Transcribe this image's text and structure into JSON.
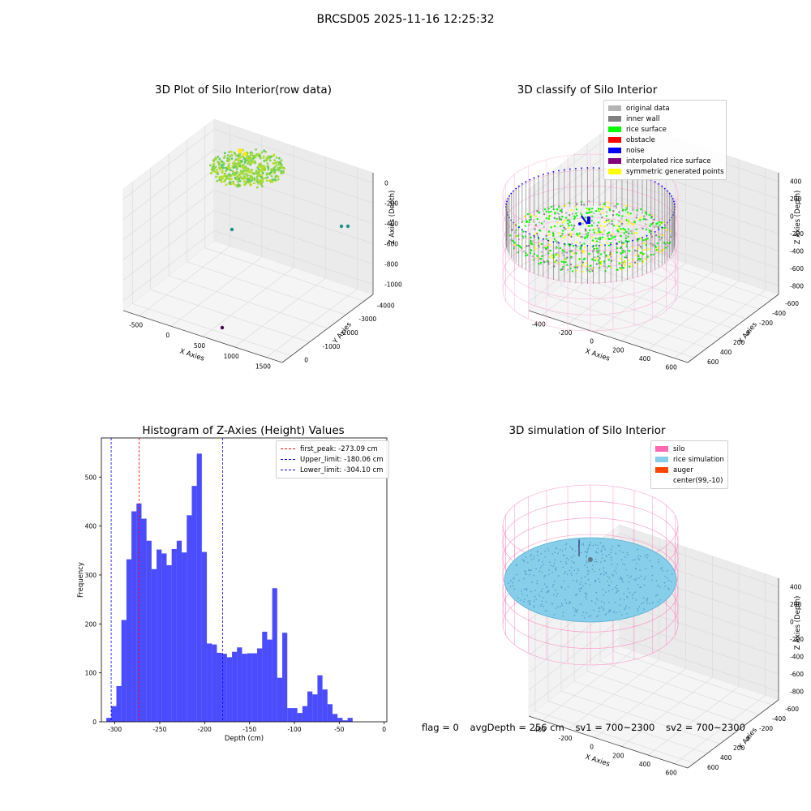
{
  "suptitle": "BRCSD05 2025-11-16 12:25:32",
  "chart_data": [
    {
      "type": "scatter",
      "title": "3D Plot of Silo Interior(row data)",
      "xlabel": "X Axies",
      "ylabel": "Y Axies",
      "zlabel": "Z Axies (Depth)",
      "x_ticks": [
        "-500",
        "0",
        "500",
        "1000",
        "1500"
      ],
      "y_ticks": [
        "0",
        "-1000",
        "-2000",
        "-3000",
        "-4000"
      ],
      "z_ticks": [
        "0",
        "-200",
        "-400",
        "-600",
        "-800",
        "-1000"
      ],
      "xlim": [
        -650,
        1850
      ],
      "ylim": [
        -4300,
        400
      ],
      "zlim": [
        -1080,
        20
      ],
      "outliers": [
        {
          "x": -50,
          "y": -800,
          "z": -620
        },
        {
          "x": 1400,
          "y": -400,
          "z": -620
        },
        {
          "x": 1500,
          "y": -400,
          "z": -620
        },
        {
          "x": 600,
          "y": -4200,
          "z": -1000
        }
      ],
      "colormap": [
        "#440154",
        "#21918c",
        "#5ec962",
        "#fde725"
      ]
    },
    {
      "type": "scatter",
      "title": "3D classify of Silo Interior",
      "xlabel": "X Axies",
      "ylabel": "Y Axies",
      "zlabel": "Z Axies (Depth)",
      "x_ticks": [
        "-400",
        "-200",
        "0",
        "200",
        "400",
        "600"
      ],
      "y_ticks": [
        "600",
        "400",
        "200",
        "0",
        "-200",
        "-400",
        "-600"
      ],
      "z_ticks": [
        "400",
        "200",
        "0",
        "-200",
        "-400",
        "-600",
        "-800"
      ],
      "legend": [
        {
          "label": "original data",
          "color": "#b4b4b4"
        },
        {
          "label": "inner wall",
          "color": "#808080"
        },
        {
          "label": "rice surface",
          "color": "#00ff00"
        },
        {
          "label": "obstacle",
          "color": "#ff0000"
        },
        {
          "label": "noise",
          "color": "#0000ff"
        },
        {
          "label": "interpolated rice surface",
          "color": "#800080"
        },
        {
          "label": "symmetric generated points",
          "color": "#ffff00"
        }
      ],
      "silo_color": "#ff69b4"
    },
    {
      "type": "bar",
      "title": "Histogram of Z-Axies (Height) Values",
      "xlabel": "Depth (cm)",
      "ylabel": "Frequency",
      "xlim": [
        -315,
        3
      ],
      "ylim": [
        0,
        580
      ],
      "x_ticks": [
        -300,
        -250,
        -200,
        -150,
        -100,
        -50,
        0
      ],
      "y_ticks": [
        0,
        100,
        200,
        300,
        400,
        500
      ],
      "bin_start": -309.5,
      "bin_width": 5.6,
      "values": [
        8,
        32,
        73,
        208,
        332,
        430,
        446,
        415,
        370,
        312,
        352,
        344,
        320,
        353,
        370,
        346,
        422,
        482,
        548,
        347,
        160,
        158,
        141,
        139,
        132,
        143,
        152,
        139,
        140,
        140,
        150,
        184,
        168,
        273,
        90,
        182,
        28,
        28,
        18,
        32,
        62,
        56,
        95,
        66,
        36,
        16,
        8,
        3,
        8
      ],
      "bar_color": "#0000ff",
      "lines": [
        {
          "label": "first_peak: -273.09 cm",
          "x": -273.09,
          "color": "#ff0000"
        },
        {
          "label": "Upper_limit: -180.06 cm",
          "x": -180.06,
          "color": "#0000ff"
        },
        {
          "label": "Lower_limit: -304.10 cm",
          "x": -304.1,
          "color": "#0000ff"
        }
      ]
    },
    {
      "type": "scatter",
      "title": "3D simulation of Silo Interior",
      "xlabel": "X Axies",
      "ylabel": "Y Axies",
      "zlabel": "Z Axies (Depth)",
      "x_ticks": [
        "-400",
        "-200",
        "0",
        "200",
        "400",
        "600"
      ],
      "y_ticks": [
        "600",
        "400",
        "200",
        "0",
        "-200",
        "-400",
        "-600"
      ],
      "z_ticks": [
        "400",
        "200",
        "0",
        "-200",
        "-400",
        "-600",
        "-800"
      ],
      "legend": [
        {
          "label": "silo",
          "color": "#ff69b4"
        },
        {
          "label": "rice simulation",
          "color": "#87ceeb"
        },
        {
          "label": "auger",
          "color": "#ff4500"
        },
        {
          "label": "center(99,-10)",
          "color": ""
        }
      ]
    }
  ],
  "status": {
    "flag": "flag = 0",
    "avg": "avgDepth = 256 cm",
    "sv1": "sv1 = 700~2300",
    "sv2": "sv2 = 700~2300"
  }
}
